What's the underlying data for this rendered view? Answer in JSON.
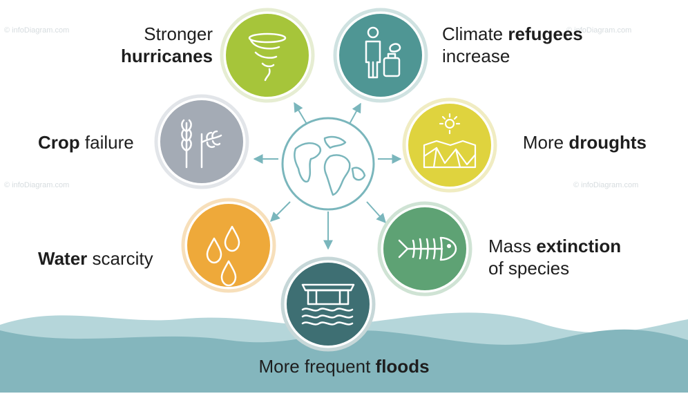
{
  "colors": {
    "hurricanes": "#a6c53a",
    "refugees": "#4f9694",
    "droughts": "#dfd33e",
    "crop": "#a4abb5",
    "extinction": "#5ea274",
    "water": "#eea93a",
    "floods": "#3e6f73",
    "wave_front": "#84b6bd",
    "wave_back": "#b5d6da",
    "arrow": "#7ab6bc",
    "globe": "#7ab6bc"
  },
  "watermark": "© infoDiagram.com",
  "labels": {
    "hurricanes": {
      "line1": "Stronger",
      "line2_bold": "hurricanes"
    },
    "refugees": {
      "line1_pre": "Climate ",
      "line1_bold": "refugees",
      "line2": "increase"
    },
    "crop": {
      "bold": "Crop",
      "rest": " failure"
    },
    "droughts": {
      "pre": "More ",
      "bold": "droughts"
    },
    "water": {
      "bold": "Water",
      "rest": " scarcity"
    },
    "extinction": {
      "line1_pre": "Mass ",
      "line1_bold": "extinction",
      "line2": "of species"
    },
    "floods": {
      "pre": "More frequent ",
      "bold": "floods"
    }
  },
  "icons": {
    "hurricanes": "tornado-icon",
    "refugees": "refugee-with-luggage-icon",
    "droughts": "sun-over-cracked-ground-icon",
    "crop": "wheat-icon",
    "extinction": "fish-skeleton-icon",
    "water": "water-drops-icon",
    "floods": "flooded-house-icon",
    "center": "globe-icon"
  }
}
